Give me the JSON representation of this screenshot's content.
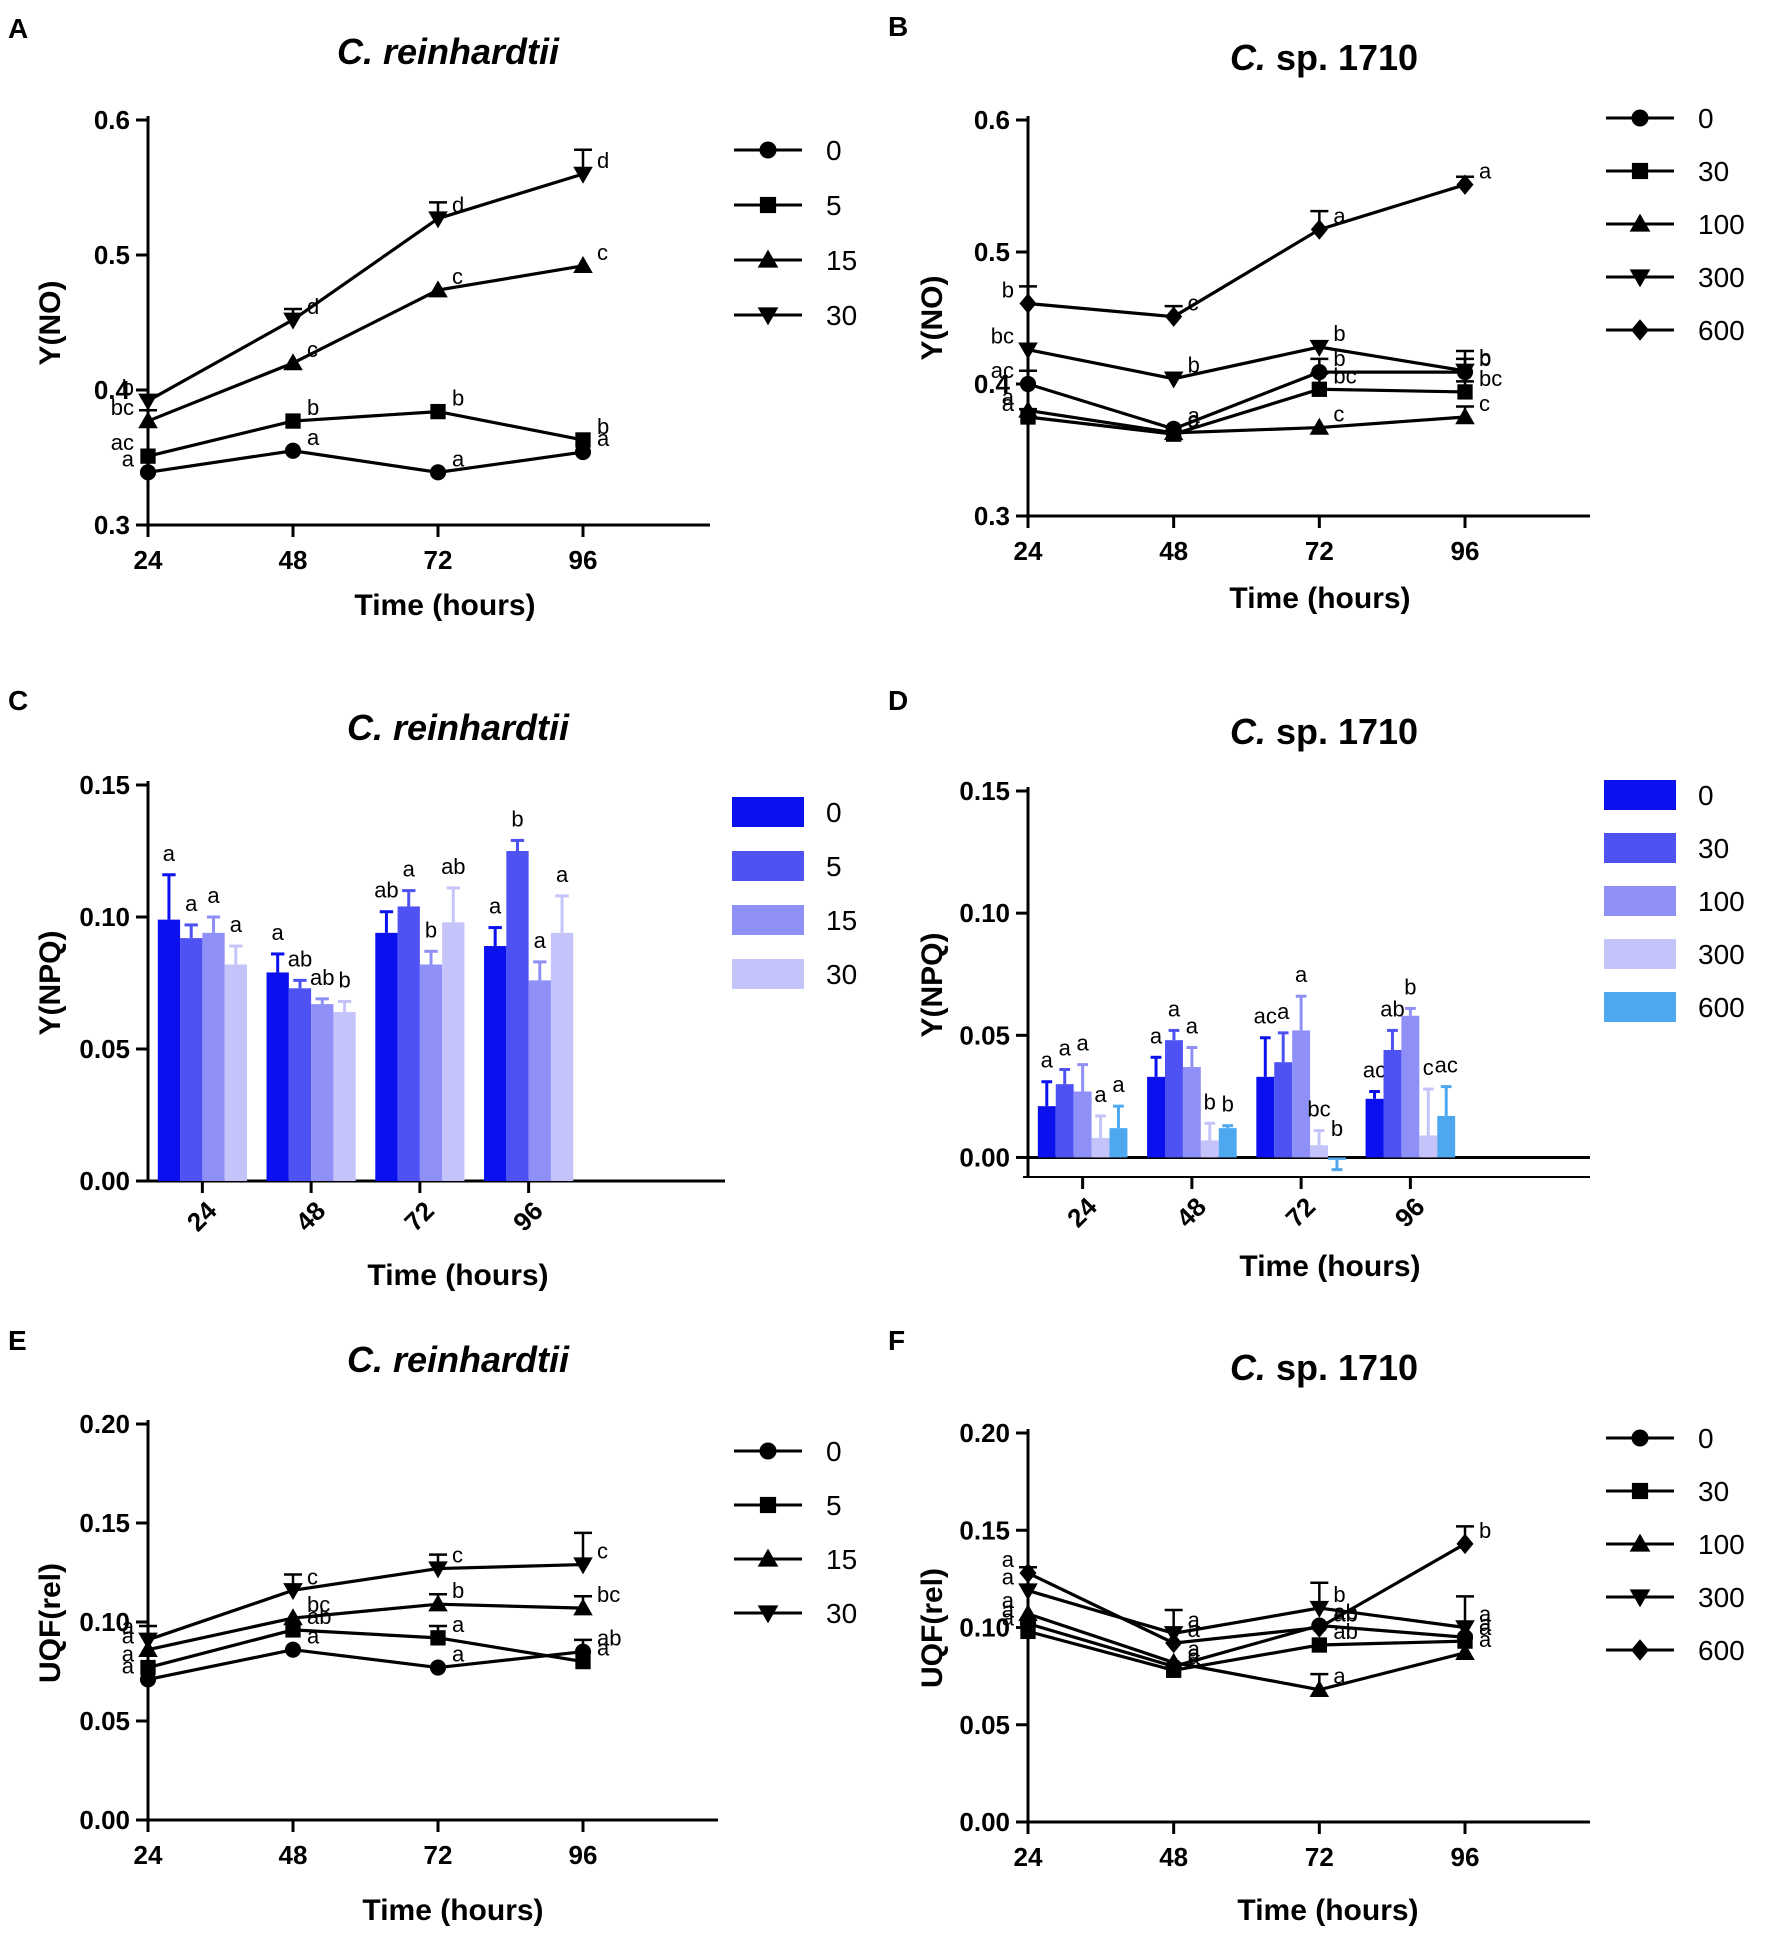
{
  "figure": {
    "x_values": [
      24,
      48,
      72,
      96
    ],
    "xlabel": "Time (hours)"
  },
  "chart_data": [
    {
      "panel": "A",
      "type": "line",
      "title_italic": "C. reinhardtii",
      "title_rest": "",
      "xlabel": "Time (hours)",
      "ylabel": "Y(NO)",
      "x": [
        24,
        48,
        72,
        96
      ],
      "ylim": [
        0.3,
        0.6
      ],
      "yticks": [
        0.3,
        0.4,
        0.5,
        0.6
      ],
      "ytick_labels": [
        "0.3",
        "0.4",
        "0.5",
        "0.6"
      ],
      "series": [
        {
          "name": "0",
          "marker": "circle",
          "values": [
            0.339,
            0.355,
            0.339,
            0.354
          ],
          "err": [
            0,
            0,
            0,
            0
          ],
          "letters": [
            "a",
            "a",
            "a",
            "a"
          ]
        },
        {
          "name": "5",
          "marker": "square",
          "values": [
            0.351,
            0.377,
            0.384,
            0.363
          ],
          "err": [
            0,
            0,
            0,
            0
          ],
          "letters": [
            "ac",
            "b",
            "b",
            "b"
          ]
        },
        {
          "name": "15",
          "marker": "triangle-up",
          "values": [
            0.377,
            0.42,
            0.474,
            0.492
          ],
          "err": [
            0.008,
            0,
            0,
            0
          ],
          "letters": [
            "bc",
            "c",
            "c",
            "c"
          ]
        },
        {
          "name": "30",
          "marker": "triangle-down",
          "values": [
            0.392,
            0.452,
            0.527,
            0.56
          ],
          "err": [
            0,
            0.008,
            0.012,
            0.018
          ],
          "letters": [
            "b",
            "d",
            "d",
            "d"
          ]
        }
      ]
    },
    {
      "panel": "B",
      "type": "line",
      "title_italic": "C.",
      "title_rest": " sp. 1710",
      "xlabel": "Time (hours)",
      "ylabel": "Y(NO)",
      "x": [
        24,
        48,
        72,
        96
      ],
      "ylim": [
        0.3,
        0.6
      ],
      "yticks": [
        0.3,
        0.4,
        0.5,
        0.6
      ],
      "ytick_labels": [
        "0.3",
        "0.4",
        "0.5",
        "0.6"
      ],
      "series": [
        {
          "name": "0",
          "marker": "circle",
          "values": [
            0.4,
            0.366,
            0.409,
            0.409
          ],
          "err": [
            0.01,
            0,
            0.01,
            0.01
          ],
          "letters": [
            "ac",
            "a",
            "b",
            "b"
          ]
        },
        {
          "name": "30",
          "marker": "square",
          "values": [
            0.375,
            0.362,
            0.396,
            0.394
          ],
          "err": [
            0.006,
            0,
            0.012,
            0.008
          ],
          "letters": [
            "a",
            "a",
            "bc",
            "bc"
          ]
        },
        {
          "name": "100",
          "marker": "triangle-up",
          "values": [
            0.38,
            0.363,
            0.367,
            0.375
          ],
          "err": [
            0,
            0,
            0,
            0.008
          ],
          "letters": [
            "a",
            "a",
            "c",
            "c"
          ]
        },
        {
          "name": "300",
          "marker": "triangle-down",
          "values": [
            0.426,
            0.404,
            0.428,
            0.41
          ],
          "err": [
            0,
            0,
            0,
            0.015
          ],
          "letters": [
            "bc",
            "b",
            "b",
            "b"
          ]
        },
        {
          "name": "600",
          "marker": "diamond",
          "values": [
            0.461,
            0.451,
            0.517,
            0.551
          ],
          "err": [
            0.013,
            0.008,
            0.014,
            0.006
          ],
          "letters": [
            "b",
            "c",
            "a",
            "a"
          ]
        }
      ]
    },
    {
      "panel": "C",
      "type": "bar",
      "title_italic": "C. reinhardtii",
      "title_rest": "",
      "xlabel": "Time (hours)",
      "ylabel": "Y(NPQ)",
      "categories": [
        "24",
        "48",
        "72",
        "96"
      ],
      "ylim": [
        0,
        0.15
      ],
      "yticks": [
        0,
        0.05,
        0.1,
        0.15
      ],
      "ytick_labels": [
        "0.00",
        "0.05",
        "0.10",
        "0.15"
      ],
      "series": [
        {
          "name": "0",
          "color": "#0a10ee",
          "values": [
            0.099,
            0.079,
            0.094,
            0.089
          ],
          "err": [
            0.017,
            0.007,
            0.008,
            0.007
          ],
          "letters": [
            "a",
            "a",
            "ab",
            "a"
          ]
        },
        {
          "name": "5",
          "color": "#4f52f3",
          "values": [
            0.092,
            0.073,
            0.104,
            0.125
          ],
          "err": [
            0.005,
            0.003,
            0.006,
            0.004
          ],
          "letters": [
            "a",
            "ab",
            "a",
            "b"
          ]
        },
        {
          "name": "15",
          "color": "#8f90f7",
          "values": [
            0.094,
            0.067,
            0.082,
            0.076
          ],
          "err": [
            0.006,
            0.002,
            0.005,
            0.007
          ],
          "letters": [
            "a",
            "ab",
            "b",
            "a"
          ]
        },
        {
          "name": "30",
          "color": "#c4c4fb",
          "values": [
            0.082,
            0.064,
            0.098,
            0.094
          ],
          "err": [
            0.007,
            0.004,
            0.013,
            0.014
          ],
          "letters": [
            "a",
            "b",
            "ab",
            "a"
          ]
        }
      ]
    },
    {
      "panel": "D",
      "type": "bar",
      "title_italic": "C.",
      "title_rest": " sp. 1710",
      "xlabel": "Time (hours)",
      "ylabel": "Y(NPQ)",
      "categories": [
        "24",
        "48",
        "72",
        "96"
      ],
      "ylim": [
        -0.008,
        0.15
      ],
      "yticks": [
        0,
        0.05,
        0.1,
        0.15
      ],
      "ytick_labels": [
        "0.00",
        "0.05",
        "0.10",
        "0.15"
      ],
      "series": [
        {
          "name": "0",
          "color": "#0a10ee",
          "values": [
            0.021,
            0.033,
            0.033,
            0.024
          ],
          "err": [
            0.01,
            0.008,
            0.016,
            0.003
          ],
          "letters": [
            "a",
            "a",
            "ac",
            "ac"
          ]
        },
        {
          "name": "30",
          "color": "#4f52f3",
          "values": [
            0.03,
            0.048,
            0.039,
            0.044
          ],
          "err": [
            0.006,
            0.004,
            0.012,
            0.008
          ],
          "letters": [
            "a",
            "a",
            "a",
            "ab"
          ]
        },
        {
          "name": "100",
          "color": "#8f90f7",
          "values": [
            0.027,
            0.037,
            0.052,
            0.058
          ],
          "err": [
            0.011,
            0.008,
            0.014,
            0.003
          ],
          "letters": [
            "a",
            "a",
            "a",
            "b"
          ]
        },
        {
          "name": "300",
          "color": "#c4c4fb",
          "values": [
            0.008,
            0.007,
            0.005,
            0.009
          ],
          "err": [
            0.009,
            0.007,
            0.006,
            0.019
          ],
          "letters": [
            "a",
            "b",
            "bc",
            "c"
          ]
        },
        {
          "name": "600",
          "color": "#4ea8f0",
          "values": [
            0.012,
            0.012,
            -0.001,
            0.017
          ],
          "err": [
            0.009,
            0.001,
            0.004,
            0.012
          ],
          "letters": [
            "a",
            "b",
            "b",
            "ac"
          ]
        }
      ]
    },
    {
      "panel": "E",
      "type": "line",
      "title_italic": "C. reinhardtii",
      "title_rest": "",
      "xlabel": "Time (hours)",
      "ylabel": "UQF(rel)",
      "x": [
        24,
        48,
        72,
        96
      ],
      "ylim": [
        0,
        0.2
      ],
      "yticks": [
        0,
        0.05,
        0.1,
        0.15,
        0.2
      ],
      "ytick_labels": [
        "0.00",
        "0.05",
        "0.10",
        "0.15",
        "0.20"
      ],
      "series": [
        {
          "name": "0",
          "marker": "circle",
          "values": [
            0.071,
            0.086,
            0.077,
            0.085
          ],
          "err": [
            0,
            0,
            0,
            0.006
          ],
          "letters": [
            "a",
            "a",
            "a",
            "ab"
          ]
        },
        {
          "name": "5",
          "marker": "square",
          "values": [
            0.077,
            0.096,
            0.092,
            0.08
          ],
          "err": [
            0,
            0,
            0.006,
            0
          ],
          "letters": [
            "a",
            "ab",
            "a",
            "a"
          ]
        },
        {
          "name": "15",
          "marker": "triangle-up",
          "values": [
            0.086,
            0.102,
            0.109,
            0.107
          ],
          "err": [
            0,
            0,
            0.005,
            0.006
          ],
          "letters": [
            "a",
            "bc",
            "b",
            "bc"
          ]
        },
        {
          "name": "30",
          "marker": "triangle-down",
          "values": [
            0.091,
            0.116,
            0.127,
            0.129
          ],
          "err": [
            0.007,
            0.008,
            0.007,
            0.016
          ],
          "letters": [
            "a",
            "c",
            "c",
            "c"
          ]
        }
      ]
    },
    {
      "panel": "F",
      "type": "line",
      "title_italic": "C.",
      "title_rest": " sp. 1710",
      "xlabel": "Time (hours)",
      "ylabel": "UQF(rel)",
      "x": [
        24,
        48,
        72,
        96
      ],
      "ylim": [
        0,
        0.2
      ],
      "yticks": [
        0,
        0.05,
        0.1,
        0.15,
        0.2
      ],
      "ytick_labels": [
        "0.00",
        "0.05",
        "0.10",
        "0.15",
        "0.20"
      ],
      "series": [
        {
          "name": "0",
          "marker": "circle",
          "values": [
            0.102,
            0.08,
            0.101,
            0.095
          ],
          "err": [
            0,
            0,
            0,
            0
          ],
          "letters": [
            "a",
            "a",
            "ab",
            "a"
          ]
        },
        {
          "name": "30",
          "marker": "square",
          "values": [
            0.098,
            0.078,
            0.091,
            0.093
          ],
          "err": [
            0,
            0,
            0,
            0
          ],
          "letters": [
            "a",
            "a",
            "ab",
            "a"
          ]
        },
        {
          "name": "100",
          "marker": "triangle-up",
          "values": [
            0.107,
            0.082,
            0.068,
            0.087
          ],
          "err": [
            0,
            0,
            0.008,
            0
          ],
          "letters": [
            "a",
            "a",
            "a",
            "a"
          ]
        },
        {
          "name": "300",
          "marker": "triangle-down",
          "values": [
            0.119,
            0.097,
            0.11,
            0.1
          ],
          "err": [
            0.012,
            0.012,
            0.013,
            0.016
          ],
          "letters": [
            "a",
            "a",
            "b",
            "a"
          ]
        },
        {
          "name": "600",
          "marker": "diamond",
          "values": [
            0.128,
            0.092,
            0.1,
            0.143
          ],
          "err": [
            0,
            0,
            0,
            0.009
          ],
          "letters": [
            "a",
            "a",
            "ab",
            "b"
          ]
        }
      ]
    }
  ]
}
